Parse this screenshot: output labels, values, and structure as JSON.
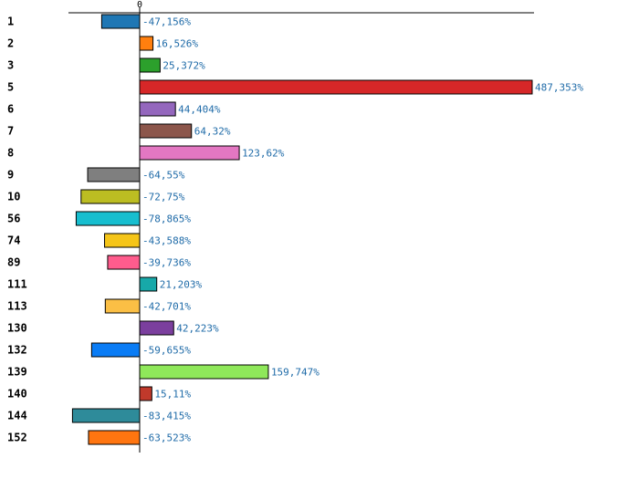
{
  "chart_data": {
    "type": "bar",
    "orientation": "horizontal",
    "title": "",
    "xlabel": "",
    "ylabel": "",
    "xlim": [
      -100,
      500
    ],
    "zero_tick_label": "0",
    "categories": [
      "1",
      "2",
      "3",
      "5",
      "6",
      "7",
      "8",
      "9",
      "10",
      "56",
      "74",
      "89",
      "111",
      "113",
      "130",
      "132",
      "139",
      "140",
      "144",
      "152"
    ],
    "values": [
      -47.156,
      16.526,
      25.372,
      487.353,
      44.404,
      64.32,
      123.62,
      -64.55,
      -72.75,
      -78.865,
      -43.588,
      -39.736,
      21.203,
      -42.701,
      42.223,
      -59.655,
      159.747,
      15.11,
      -83.415,
      -63.523
    ],
    "value_labels": [
      "-47,156%",
      "16,526%",
      "25,372%",
      "487,353%",
      "44,404%",
      "64,32%",
      "123,62%",
      "-64,55%",
      "-72,75%",
      "-78,865%",
      "-43,588%",
      "-39,736%",
      "21,203%",
      "-42,701%",
      "42,223%",
      "-59,655%",
      "159,747%",
      "15,11%",
      "-83,415%",
      "-63,523%"
    ],
    "colors": [
      "#1f77b4",
      "#ff7f0e",
      "#2ca02c",
      "#d62728",
      "#9467bd",
      "#8c564b",
      "#e377c2",
      "#7f7f7f",
      "#bcbd22",
      "#17becf",
      "#f5c518",
      "#ff5c8d",
      "#17a9a9",
      "#fbbf45",
      "#7b3f9e",
      "#0a7cf5",
      "#8fe85a",
      "#c0392b",
      "#2e8b9a",
      "#ff7510"
    ]
  }
}
